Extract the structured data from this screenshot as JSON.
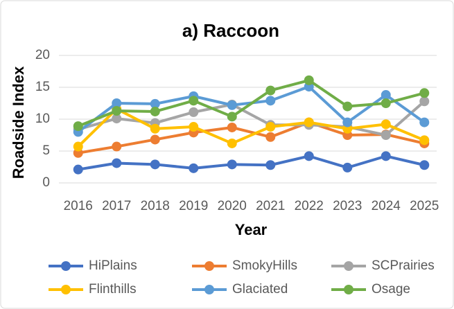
{
  "chart_data": {
    "type": "line",
    "title": "a) Raccoon",
    "x_label": "Year",
    "y_label": "Roadside Index",
    "categories": [
      "2016",
      "2017",
      "2018",
      "2019",
      "2020",
      "2021",
      "2022",
      "2023",
      "2024",
      "2025"
    ],
    "series": [
      {
        "name": "HiPlains",
        "color": "#4472c4",
        "values": [
          2.1,
          3.1,
          2.9,
          2.3,
          2.9,
          2.8,
          4.2,
          2.4,
          4.2,
          2.8
        ]
      },
      {
        "name": "SmokyHills",
        "color": "#ed7d31",
        "values": [
          4.7,
          5.7,
          6.8,
          7.9,
          8.7,
          7.2,
          9.5,
          7.5,
          7.6,
          6.2
        ]
      },
      {
        "name": "SCPrairies",
        "color": "#a5a5a5",
        "values": [
          8.4,
          10.1,
          9.4,
          11.1,
          12.3,
          9.1,
          9.1,
          8.8,
          7.5,
          12.8
        ]
      },
      {
        "name": "Flinthills",
        "color": "#ffc000",
        "values": [
          5.7,
          11.6,
          8.5,
          8.8,
          6.2,
          8.8,
          9.5,
          8.5,
          9.2,
          6.7
        ]
      },
      {
        "name": "Glaciated",
        "color": "#5b9bd5",
        "values": [
          8.0,
          12.5,
          12.4,
          13.6,
          12.2,
          12.9,
          15.1,
          9.5,
          13.8,
          9.5
        ]
      },
      {
        "name": "Osage",
        "color": "#70ad47",
        "values": [
          8.9,
          11.3,
          11.2,
          12.9,
          10.4,
          14.5,
          16.1,
          12.0,
          12.5,
          14.1
        ]
      }
    ],
    "ylim": [
      0,
      20
    ],
    "yticks": [
      0,
      5,
      10,
      15,
      20
    ],
    "grid": true,
    "legend": "bottom"
  }
}
